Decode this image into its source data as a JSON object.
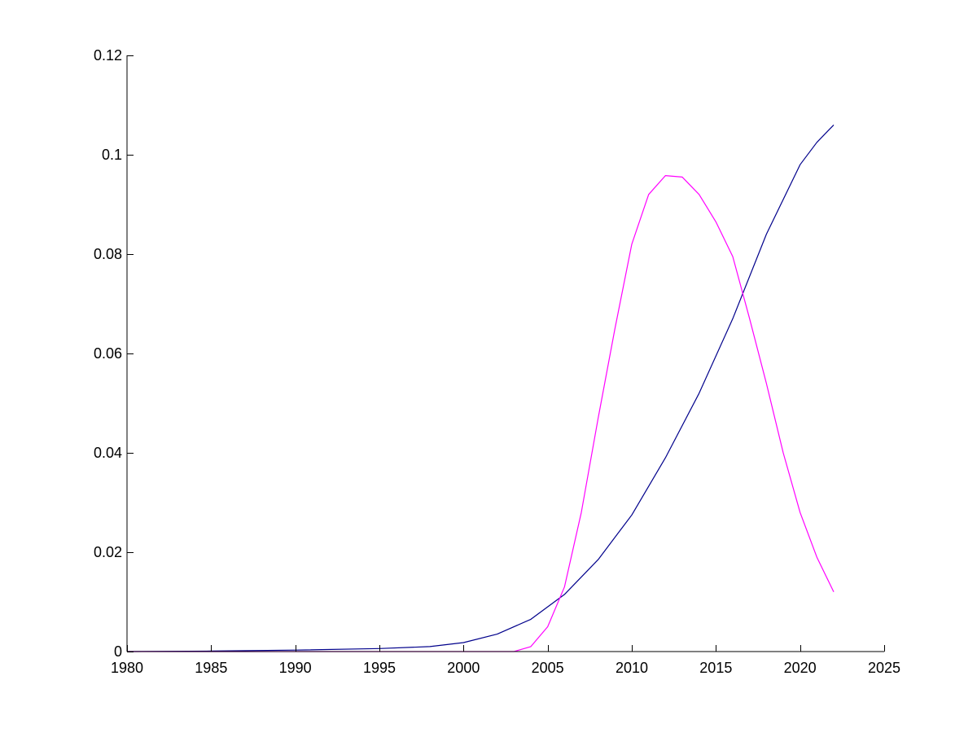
{
  "chart_data": {
    "type": "line",
    "title": "",
    "xlabel": "",
    "ylabel": "",
    "xlim": [
      1980,
      2025
    ],
    "ylim": [
      0,
      0.12
    ],
    "x_ticks": [
      1980,
      1985,
      1990,
      1995,
      2000,
      2005,
      2010,
      2015,
      2020,
      2025
    ],
    "x_tick_labels": [
      "1980",
      "1985",
      "1990",
      "1995",
      "2000",
      "2005",
      "2010",
      "2015",
      "2020",
      "2025"
    ],
    "y_ticks": [
      0,
      0.02,
      0.04,
      0.06,
      0.08,
      0.1,
      0.12
    ],
    "y_tick_labels": [
      "0",
      "0.02",
      "0.04",
      "0.06",
      "0.08",
      "0.1",
      "0.12"
    ],
    "grid": false,
    "legend": "none",
    "series": [
      {
        "color": "#00008b",
        "x": [
          1980,
          1985,
          1990,
          1995,
          1998,
          2000,
          2002,
          2004,
          2006,
          2008,
          2010,
          2012,
          2014,
          2016,
          2018,
          2020,
          2021,
          2022
        ],
        "y": [
          0,
          0.0001,
          0.0003,
          0.0006,
          0.001,
          0.0018,
          0.0035,
          0.0065,
          0.0115,
          0.0185,
          0.0275,
          0.039,
          0.052,
          0.067,
          0.084,
          0.098,
          0.1025,
          0.106
        ]
      },
      {
        "color": "#ff00ff",
        "x": [
          1980,
          2003,
          2004,
          2005,
          2006,
          2007,
          2008,
          2009,
          2010,
          2011,
          2012,
          2013,
          2014,
          2015,
          2016,
          2017,
          2018,
          2019,
          2020,
          2021,
          2022
        ],
        "y": [
          0,
          0,
          0.001,
          0.005,
          0.013,
          0.028,
          0.047,
          0.065,
          0.082,
          0.092,
          0.0958,
          0.0955,
          0.092,
          0.0865,
          0.0795,
          0.067,
          0.054,
          0.04,
          0.028,
          0.019,
          0.012
        ]
      }
    ]
  }
}
